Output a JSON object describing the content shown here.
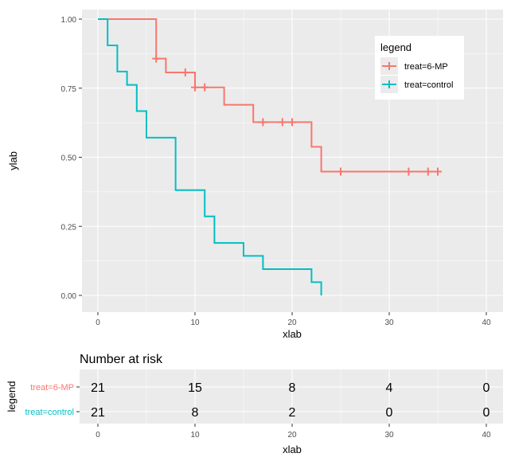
{
  "chart_data": [
    {
      "type": "line",
      "subtype": "kaplan-meier step",
      "xlabel": "xlab",
      "ylabel": "ylab",
      "xlim": [
        -1.5,
        42
      ],
      "ylim": [
        -0.06,
        1.04
      ],
      "xticks": [
        0,
        10,
        20,
        30,
        40
      ],
      "xtick_labels": [
        "0",
        "10",
        "20",
        "30",
        "40"
      ],
      "yticks": [
        0,
        0.25,
        0.5,
        0.75,
        1
      ],
      "ytick_labels": [
        "0.00",
        "0.25",
        "0.50",
        "0.75",
        "1.00"
      ],
      "grid": true,
      "legend": {
        "title": "legend",
        "placement": "top-right",
        "entries": [
          "treat=6-MP",
          "treat=control"
        ]
      },
      "series": [
        {
          "name": "treat=6-MP",
          "color": "#F8766D",
          "steps": [
            [
              0,
              1
            ],
            [
              6,
              0.857
            ],
            [
              7,
              0.807
            ],
            [
              10,
              0.753
            ],
            [
              13,
              0.69
            ],
            [
              16,
              0.627
            ],
            [
              22,
              0.538
            ],
            [
              23,
              0.448
            ],
            [
              35,
              0.448
            ]
          ],
          "censored": [
            [
              6,
              0.857
            ],
            [
              9,
              0.807
            ],
            [
              10,
              0.753
            ],
            [
              11,
              0.753
            ],
            [
              17,
              0.627
            ],
            [
              19,
              0.627
            ],
            [
              20,
              0.627
            ],
            [
              25,
              0.448
            ],
            [
              32,
              0.448
            ],
            [
              34,
              0.448
            ],
            [
              35,
              0.448
            ]
          ]
        },
        {
          "name": "treat=control",
          "color": "#00BFC4",
          "steps": [
            [
              0,
              1
            ],
            [
              1,
              0.905
            ],
            [
              2,
              0.81
            ],
            [
              3,
              0.762
            ],
            [
              4,
              0.667
            ],
            [
              5,
              0.571
            ],
            [
              8,
              0.381
            ],
            [
              11,
              0.286
            ],
            [
              12,
              0.19
            ],
            [
              15,
              0.143
            ],
            [
              17,
              0.095
            ],
            [
              22,
              0.048
            ],
            [
              23,
              0
            ]
          ],
          "censored": []
        }
      ]
    },
    {
      "type": "table",
      "title": "Number at risk",
      "ylabel": "legend",
      "xlabel": "xlab",
      "xticks": [
        0,
        10,
        20,
        30,
        40
      ],
      "xtick_labels": [
        "0",
        "10",
        "20",
        "30",
        "40"
      ],
      "rows": [
        {
          "label": "treat=6-MP",
          "color": "#F8766D",
          "values": [
            "21",
            "15",
            "8",
            "4",
            "0"
          ]
        },
        {
          "label": "treat=control",
          "color": "#00BFC4",
          "values": [
            "21",
            "8",
            "2",
            "0",
            "0"
          ]
        }
      ]
    }
  ]
}
